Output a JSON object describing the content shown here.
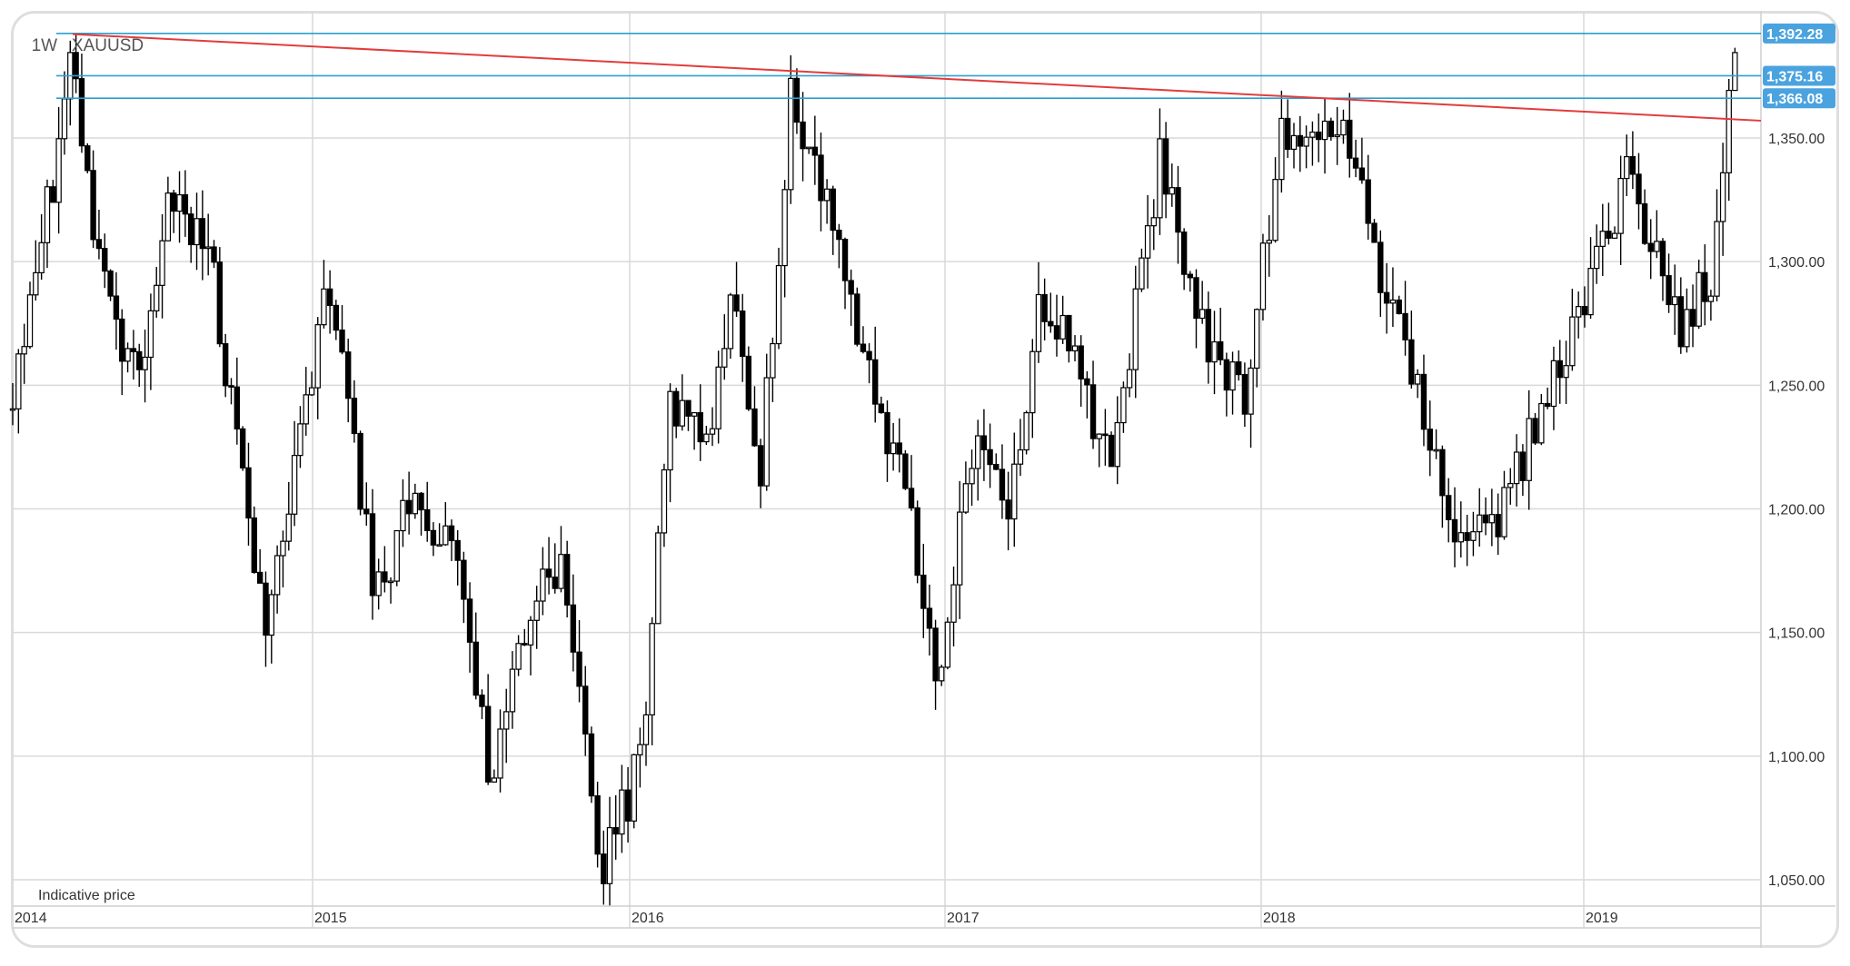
{
  "header": {
    "timeframe": "1W",
    "symbol": "XAUUSD"
  },
  "footer_note": "Indicative price",
  "colors": {
    "grid": "#d9d9d9",
    "candle": "#000000",
    "trendline": "#e23c3c",
    "level_line": "#2aa0d0",
    "badge_bg": "#4aa3df",
    "badge_text": "#ffffff",
    "axis_text": "#333333"
  },
  "chart_data": {
    "type": "candlestick",
    "title": "XAUUSD",
    "timeframe": "1W",
    "x_range": [
      "2014-01-01",
      "2019-06-28"
    ],
    "ylim": [
      1040,
      1400
    ],
    "grid": true,
    "x_ticks": [
      "2014",
      "2015",
      "2016",
      "2017",
      "2018",
      "2019"
    ],
    "y_ticks": [
      "1,050.00",
      "1,100.00",
      "1,150.00",
      "1,200.00",
      "1,250.00",
      "1,300.00",
      "1,350.00"
    ],
    "price_levels": [
      {
        "value": 1392.28,
        "label": "1,392.28"
      },
      {
        "value": 1375.16,
        "label": "1,375.16"
      },
      {
        "value": 1366.08,
        "label": "1,366.08"
      }
    ],
    "trendline": {
      "from": {
        "date": "2014-03-15",
        "value": 1392
      },
      "to": {
        "date": "2019-06-28",
        "value": 1357
      }
    },
    "anchors": [
      {
        "date": "2014-01-01",
        "close": 1240
      },
      {
        "date": "2014-03-15",
        "close": 1380
      },
      {
        "date": "2014-04-20",
        "close": 1290
      },
      {
        "date": "2014-06-05",
        "close": 1250
      },
      {
        "date": "2014-07-10",
        "close": 1330
      },
      {
        "date": "2014-09-01",
        "close": 1300
      },
      {
        "date": "2014-10-01",
        "close": 1225
      },
      {
        "date": "2014-11-05",
        "close": 1150
      },
      {
        "date": "2014-12-01",
        "close": 1200
      },
      {
        "date": "2015-01-20",
        "close": 1295
      },
      {
        "date": "2015-03-15",
        "close": 1160
      },
      {
        "date": "2015-04-20",
        "close": 1205
      },
      {
        "date": "2015-06-15",
        "close": 1180
      },
      {
        "date": "2015-07-25",
        "close": 1090
      },
      {
        "date": "2015-08-25",
        "close": 1150
      },
      {
        "date": "2015-10-15",
        "close": 1180
      },
      {
        "date": "2015-12-01",
        "close": 1055
      },
      {
        "date": "2016-01-15",
        "close": 1100
      },
      {
        "date": "2016-02-15",
        "close": 1240
      },
      {
        "date": "2016-04-01",
        "close": 1230
      },
      {
        "date": "2016-05-01",
        "close": 1295
      },
      {
        "date": "2016-05-30",
        "close": 1205
      },
      {
        "date": "2016-07-06",
        "close": 1365
      },
      {
        "date": "2016-08-20",
        "close": 1320
      },
      {
        "date": "2016-10-05",
        "close": 1255
      },
      {
        "date": "2016-11-15",
        "close": 1210
      },
      {
        "date": "2016-12-20",
        "close": 1130
      },
      {
        "date": "2017-02-10",
        "close": 1240
      },
      {
        "date": "2017-03-15",
        "close": 1200
      },
      {
        "date": "2017-04-20",
        "close": 1280
      },
      {
        "date": "2017-06-01",
        "close": 1265
      },
      {
        "date": "2017-07-10",
        "close": 1215
      },
      {
        "date": "2017-09-08",
        "close": 1346
      },
      {
        "date": "2017-10-20",
        "close": 1275
      },
      {
        "date": "2017-12-12",
        "close": 1245
      },
      {
        "date": "2018-01-25",
        "close": 1355
      },
      {
        "date": "2018-04-15",
        "close": 1345
      },
      {
        "date": "2018-05-20",
        "close": 1290
      },
      {
        "date": "2018-06-25",
        "close": 1250
      },
      {
        "date": "2018-08-15",
        "close": 1180
      },
      {
        "date": "2018-09-25",
        "close": 1195
      },
      {
        "date": "2018-11-01",
        "close": 1230
      },
      {
        "date": "2019-01-01",
        "close": 1285
      },
      {
        "date": "2019-02-20",
        "close": 1335
      },
      {
        "date": "2019-04-25",
        "close": 1275
      },
      {
        "date": "2019-05-30",
        "close": 1295
      },
      {
        "date": "2019-06-12",
        "close": 1345
      },
      {
        "date": "2019-06-28",
        "close": 1390
      }
    ]
  }
}
